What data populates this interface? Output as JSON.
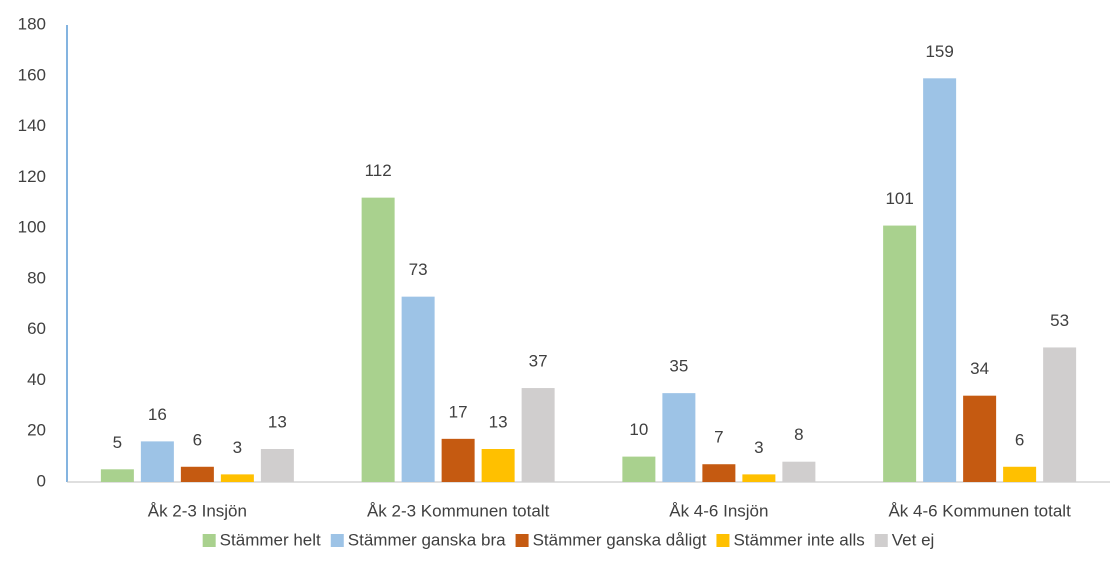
{
  "chart_data": {
    "type": "bar",
    "categories": [
      "Åk 2-3 Insjön",
      "Åk 2-3 Kommunen totalt",
      "Åk 4-6 Insjön",
      "Åk 4-6 Kommunen totalt"
    ],
    "series": [
      {
        "name": "Stämmer helt",
        "color": "#a9d18e",
        "values": [
          5,
          112,
          10,
          101
        ]
      },
      {
        "name": "Stämmer ganska bra",
        "color": "#9dc3e6",
        "values": [
          16,
          73,
          35,
          159
        ]
      },
      {
        "name": "Stämmer ganska dåligt",
        "color": "#c55a11",
        "values": [
          6,
          17,
          7,
          34
        ]
      },
      {
        "name": "Stämmer inte alls",
        "color": "#ffc000",
        "values": [
          3,
          13,
          3,
          6
        ]
      },
      {
        "name": "Vet ej",
        "color": "#d0cece",
        "values": [
          13,
          37,
          8,
          53
        ]
      }
    ],
    "ylim": [
      0,
      180
    ],
    "yticks": [
      0,
      20,
      40,
      60,
      80,
      100,
      120,
      140,
      160,
      180
    ],
    "grid": false,
    "legend": "bottom"
  }
}
